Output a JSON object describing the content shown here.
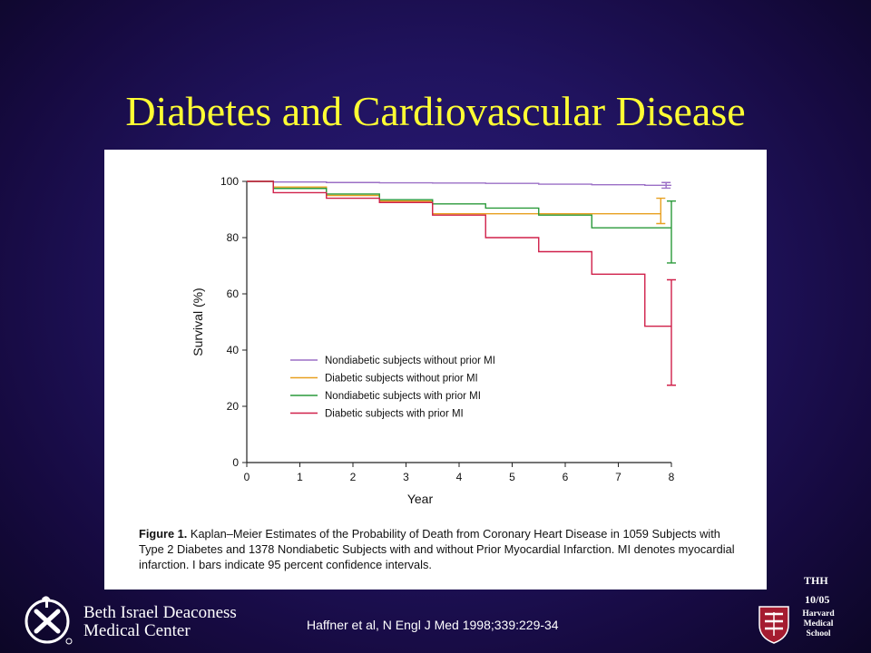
{
  "slide": {
    "title": "Diabetes and Cardiovascular Disease",
    "citation": "Haffner et al, N Engl J Med 1998;339:229-34",
    "author_initials": "THH",
    "date": "10/05",
    "institution_name_line1": "Beth Israel Deaconess",
    "institution_name_line2": "Medical Center",
    "school_line1": "Harvard",
    "school_line2": "Medical",
    "school_line3": "School"
  },
  "figure": {
    "caption_label": "Figure 1.",
    "caption_text": "Kaplan–Meier Estimates of the Probability of Death from Coronary Heart Disease in 1059 Subjects with Type 2 Diabetes and 1378 Nondiabetic Subjects with and without Prior Myocardial Infarction. MI denotes myocardial infarction. I bars indicate 95 percent confidence intervals."
  },
  "chart_data": {
    "type": "line",
    "subtype": "step (Kaplan-Meier)",
    "xlabel": "Year",
    "ylabel": "Survival (%)",
    "xlim": [
      0,
      8
    ],
    "ylim": [
      0,
      100
    ],
    "x_ticks": [
      0,
      1,
      2,
      3,
      4,
      5,
      6,
      7,
      8
    ],
    "y_ticks": [
      0,
      20,
      40,
      60,
      80,
      100
    ],
    "grid": false,
    "legend_placement": "center-left inside plot",
    "series": [
      {
        "name": "Nondiabetic subjects without prior MI",
        "color": "#9b6fc6",
        "x": [
          0,
          0.5,
          1.5,
          2.5,
          3.5,
          4.5,
          5.5,
          6.5,
          7.5,
          8
        ],
        "y": [
          100,
          99.8,
          99.6,
          99.5,
          99.4,
          99.3,
          99.0,
          98.8,
          98.6,
          98.6
        ],
        "ci": {
          "x": 7.9,
          "lower": 97.6,
          "upper": 99.6
        }
      },
      {
        "name": "Diabetic subjects without prior MI",
        "color": "#e8a020",
        "x": [
          0,
          0.5,
          1.5,
          2.5,
          3.5,
          4.5,
          5.5,
          6.5,
          7.5,
          7.8
        ],
        "y": [
          100,
          98.0,
          95.0,
          93.0,
          88.5,
          88.5,
          88.5,
          88.5,
          88.5,
          88.5
        ],
        "ci": {
          "x": 7.8,
          "lower": 85.0,
          "upper": 94.0
        }
      },
      {
        "name": "Nondiabetic subjects with prior MI",
        "color": "#2a9a3a",
        "x": [
          0,
          0.5,
          1.5,
          2.5,
          3.5,
          4.5,
          5.5,
          6.5,
          8
        ],
        "y": [
          100,
          97.5,
          95.5,
          93.5,
          92.0,
          90.5,
          88.0,
          83.5,
          83.5
        ],
        "ci": {
          "x": 8.0,
          "lower": 71.0,
          "upper": 93.0
        }
      },
      {
        "name": "Diabetic subjects with prior MI",
        "color": "#d0204a",
        "x": [
          0,
          0.5,
          1.5,
          2.5,
          3.5,
          4.5,
          5.5,
          6.5,
          7.5,
          8
        ],
        "y": [
          100,
          96.0,
          94.0,
          92.5,
          88.0,
          80.0,
          75.0,
          67.0,
          48.5,
          48.5
        ],
        "ci": {
          "x": 8.0,
          "lower": 27.5,
          "upper": 65.0
        }
      }
    ]
  }
}
